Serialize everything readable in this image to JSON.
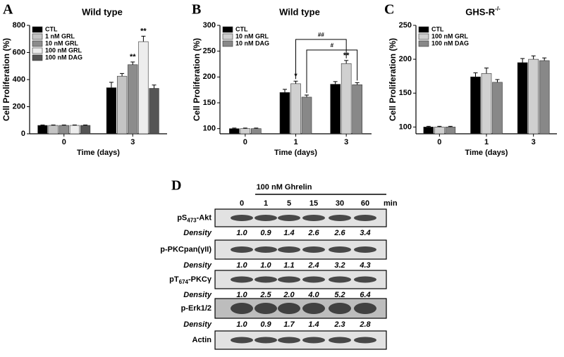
{
  "chart_data": [
    {
      "type": "bar",
      "panel_label": "A",
      "title": "Wild type",
      "y_label": "Cell Proliferation (%)",
      "x_label": "Time (days)",
      "categories": [
        "0",
        "3"
      ],
      "ylim": [
        0,
        800
      ],
      "yticks": [
        0,
        200,
        400,
        600,
        800
      ],
      "series": [
        {
          "name": "CTL",
          "color": "#000000",
          "values": [
            62,
            340
          ],
          "errors": [
            3,
            40
          ]
        },
        {
          "name": "1 nM GRL",
          "color": "#c4c4c4",
          "values": [
            62,
            425
          ],
          "errors": [
            3,
            20
          ]
        },
        {
          "name": "10 nM GRL",
          "color": "#8c8c8c",
          "values": [
            62,
            510
          ],
          "errors": [
            3,
            20
          ]
        },
        {
          "name": "100 nM GRL",
          "color": "#ededed",
          "values": [
            62,
            680
          ],
          "errors": [
            3,
            40
          ]
        },
        {
          "name": "100 nM DAG",
          "color": "#555555",
          "values": [
            62,
            335
          ],
          "errors": [
            3,
            25
          ]
        }
      ],
      "annotations": [
        {
          "text": "**",
          "series": 2,
          "category": 1
        },
        {
          "text": "**",
          "series": 3,
          "category": 1
        }
      ]
    },
    {
      "type": "bar",
      "panel_label": "B",
      "title": "Wild type",
      "y_label": "Cell Proliferation (%)",
      "x_label": "Time (days)",
      "categories": [
        "0",
        "1",
        "3"
      ],
      "ylim": [
        90,
        300
      ],
      "yticks": [
        100,
        150,
        200,
        250,
        300
      ],
      "series": [
        {
          "name": "CTL",
          "color": "#000000",
          "values": [
            100,
            170,
            186
          ],
          "errors": [
            1,
            6,
            5
          ]
        },
        {
          "name": "10 nM GRL",
          "color": "#d0d0d0",
          "values": [
            100,
            187,
            226
          ],
          "errors": [
            1,
            5,
            6
          ]
        },
        {
          "name": "10 nM DAG",
          "color": "#888888",
          "values": [
            100,
            161,
            185
          ],
          "errors": [
            1,
            4,
            4
          ]
        }
      ],
      "annotations": [
        {
          "text": "*",
          "series": 1,
          "category": 1
        },
        {
          "text": "**",
          "series": 1,
          "category": 2
        }
      ],
      "brackets": [
        {
          "text": "##",
          "series": 1,
          "from": 1,
          "to": 2
        },
        {
          "text": "#",
          "series": 2,
          "from": 1,
          "to": 2
        }
      ]
    },
    {
      "type": "bar",
      "panel_label": "C",
      "title": "GHS-R",
      "title_superscript": "-/-",
      "y_label": "Cell Proliferation (%)",
      "x_label": "Time (days)",
      "categories": [
        "0",
        "1",
        "3"
      ],
      "ylim": [
        90,
        250
      ],
      "yticks": [
        100,
        150,
        200,
        250
      ],
      "series": [
        {
          "name": "CTL",
          "color": "#000000",
          "values": [
            100,
            174,
            195
          ],
          "errors": [
            1,
            6,
            6
          ]
        },
        {
          "name": "100 nM GRL",
          "color": "#d0d0d0",
          "values": [
            100,
            179,
            200
          ],
          "errors": [
            1,
            8,
            5
          ]
        },
        {
          "name": "100 nM DAG",
          "color": "#888888",
          "values": [
            100,
            166,
            198
          ],
          "errors": [
            1,
            4,
            4
          ]
        }
      ]
    }
  ],
  "blot": {
    "panel_label": "D",
    "treatment": "100 nM Ghrelin",
    "lanes": [
      "0",
      "1",
      "5",
      "15",
      "30",
      "60"
    ],
    "unit": "min",
    "density_label": "Density",
    "rows": [
      {
        "label": "pS",
        "sub": "473",
        "suffix": "-Akt",
        "density": [
          "1.0",
          "0.9",
          "1.4",
          "2.6",
          "2.6",
          "3.4"
        ]
      },
      {
        "label": "p-PKCpan(γII)",
        "density": [
          "1.0",
          "1.0",
          "1.1",
          "2.4",
          "3.2",
          "4.3"
        ]
      },
      {
        "label": "pT",
        "sub": "674",
        "suffix": "-PKCγ",
        "density": [
          "1.0",
          "2.5",
          "2.0",
          "4.0",
          "5.2",
          "6.4"
        ]
      },
      {
        "label": "p-Erk1/2",
        "density": [
          "1.0",
          "0.9",
          "1.7",
          "1.4",
          "2.3",
          "2.8"
        ]
      },
      {
        "label": "Actin"
      }
    ]
  }
}
